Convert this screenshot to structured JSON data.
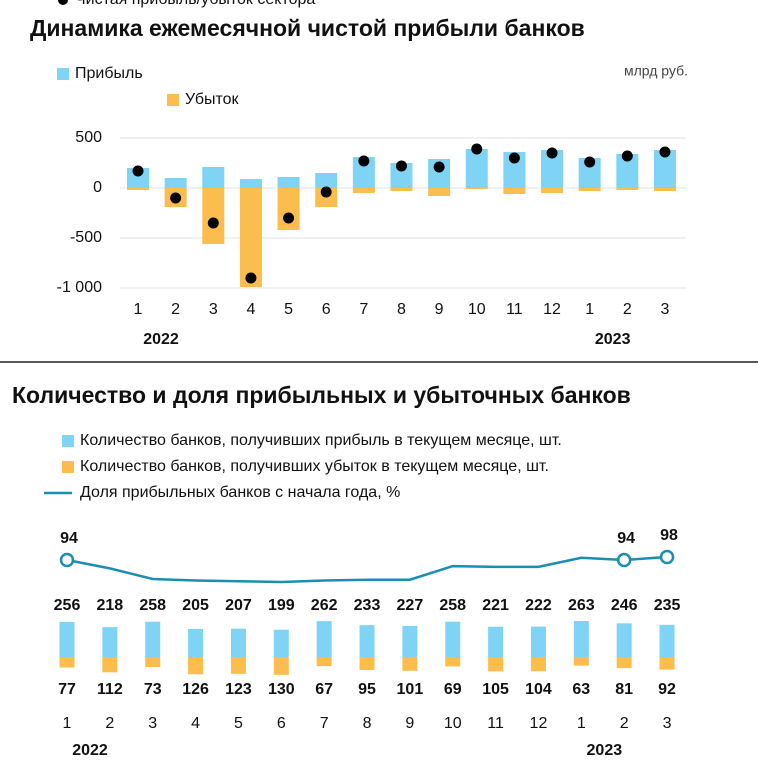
{
  "chart_data": [
    {
      "type": "bar",
      "title": "Динамика ежемесячной чистой прибыли банков",
      "unit_label": "млрд руб.",
      "groups": [
        {
          "name": "2022",
          "categories": [
            "1",
            "2",
            "3",
            "4",
            "5",
            "6",
            "7",
            "8",
            "9",
            "10",
            "11",
            "12"
          ]
        },
        {
          "name": "2023",
          "categories": [
            "1",
            "2",
            "3"
          ]
        }
      ],
      "series": [
        {
          "name": "Прибыль",
          "color": "#7fd3f5",
          "kind": "bar",
          "values": [
            200,
            100,
            210,
            90,
            110,
            150,
            310,
            250,
            290,
            390,
            360,
            380,
            300,
            340,
            380
          ]
        },
        {
          "name": "Убыток",
          "color": "#fbbd4e",
          "kind": "bar",
          "values": [
            -20,
            -190,
            -560,
            -990,
            -420,
            -190,
            -50,
            -30,
            -80,
            -10,
            -60,
            -50,
            -30,
            -20,
            -30
          ]
        },
        {
          "name": "Чистая прибыль/убыток сектора",
          "color": "#000000",
          "kind": "dot",
          "values": [
            170,
            -100,
            -350,
            -900,
            -300,
            -40,
            270,
            220,
            210,
            390,
            300,
            350,
            260,
            320,
            360
          ]
        }
      ],
      "ylim": [
        -1000,
        500
      ],
      "yticks": [
        500,
        0,
        -500,
        {
          "value": -1000,
          "label": "-1 000"
        }
      ],
      "grid": true
    },
    {
      "type": "bar",
      "title": "Количество и доля прибыльных и убыточных банков",
      "groups": [
        {
          "name": "2022",
          "categories": [
            "1",
            "2",
            "3",
            "4",
            "5",
            "6",
            "7",
            "8",
            "9",
            "10",
            "11",
            "12"
          ]
        },
        {
          "name": "2023",
          "categories": [
            "1",
            "2",
            "3"
          ]
        }
      ],
      "series": [
        {
          "name": "Количество банков, получивших прибыль в текущем месяце, шт.",
          "color": "#7fd3f5",
          "kind": "bar",
          "direction": "up",
          "label_color": "#111111",
          "values": [
            256,
            218,
            258,
            205,
            207,
            199,
            262,
            233,
            227,
            258,
            221,
            222,
            263,
            246,
            235
          ]
        },
        {
          "name": "Количество банков, получивших убыток в текущем месяце, шт.",
          "color": "#fbbd4e",
          "kind": "bar",
          "direction": "down",
          "label_color": "#e9b44c",
          "values": [
            77,
            112,
            73,
            126,
            123,
            130,
            67,
            95,
            101,
            69,
            105,
            104,
            63,
            81,
            92
          ]
        },
        {
          "name": "Доля прибыльных банков с начала года, %",
          "color": "#1a8db3",
          "kind": "line",
          "values": [
            94,
            83,
            69,
            67,
            66,
            65,
            67,
            68,
            68,
            86,
            85,
            85,
            97,
            94,
            98
          ],
          "value_labels": [
            "94",
            null,
            null,
            null,
            null,
            null,
            null,
            null,
            null,
            null,
            null,
            null,
            null,
            "94",
            "98"
          ]
        }
      ]
    }
  ]
}
